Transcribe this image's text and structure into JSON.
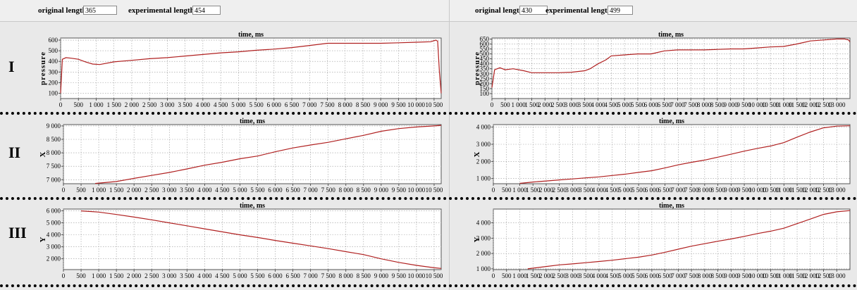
{
  "header_left": {
    "original_label": "original length",
    "original_value": "365",
    "experimental_label": "experimental length",
    "experimental_value": "454"
  },
  "header_right": {
    "original_label": "original length",
    "original_value": "430",
    "experimental_label": "experimental length",
    "experimental_value": "499"
  },
  "row_labels": [
    "I",
    "II",
    "III"
  ],
  "colors": {
    "line": "#b02020",
    "grid": "#9a9a9a",
    "plot_bg": "#ffffff",
    "panel_bg": "#e9e9e9"
  },
  "chart_data": [
    {
      "type": "line",
      "title": "time, ms",
      "ylabel": "pressure",
      "xlabel": "",
      "xlim": [
        0,
        10700
      ],
      "ylim": [
        50,
        620
      ],
      "xticks": [
        0,
        500,
        1000,
        1500,
        2000,
        2500,
        3000,
        3500,
        4000,
        4500,
        5000,
        5500,
        6000,
        6500,
        7000,
        7500,
        8000,
        8500,
        9000,
        9500,
        10000,
        10500
      ],
      "xtick_labels": [
        "0",
        "500",
        "1 000",
        "1 500",
        "2 000",
        "2 500",
        "3 000",
        "3 500",
        "4 000",
        "4 500",
        "5 000",
        "5 500",
        "6 000",
        "6 500",
        "7 000",
        "7 500",
        "8 000",
        "8 500",
        "9 000",
        "9 500",
        "10 000",
        "10 500"
      ],
      "yticks": [
        100,
        200,
        300,
        400,
        500,
        600
      ],
      "ytick_labels": [
        "100",
        "200",
        "300",
        "400",
        "500",
        "600"
      ],
      "grid": true,
      "series": [
        {
          "x": [
            0,
            50,
            150,
            300,
            500,
            700,
            900,
            1100,
            1500,
            2000,
            2500,
            3000,
            3500,
            4000,
            4500,
            5000,
            5500,
            6000,
            6500,
            7000,
            7500,
            8000,
            8500,
            9000,
            9500,
            10000,
            10400,
            10550,
            10600,
            10650,
            10700
          ],
          "y": [
            100,
            420,
            435,
            430,
            420,
            395,
            375,
            370,
            395,
            410,
            425,
            435,
            450,
            465,
            480,
            490,
            505,
            515,
            530,
            550,
            570,
            570,
            570,
            570,
            575,
            580,
            585,
            600,
            590,
            300,
            100
          ]
        }
      ]
    },
    {
      "type": "line",
      "title": "time, ms",
      "ylabel": "pressure",
      "xlabel": "",
      "xlim": [
        0,
        13500
      ],
      "ylim": [
        50,
        660
      ],
      "xticks": [
        0,
        500,
        1000,
        1500,
        2000,
        2500,
        3000,
        3500,
        4000,
        4500,
        5000,
        5500,
        6000,
        6500,
        7000,
        7500,
        8000,
        8500,
        9000,
        9500,
        10000,
        10500,
        11000,
        11500,
        12000,
        12500,
        13000
      ],
      "xtick_labels": [
        "0",
        "500",
        "1 000",
        "1 500",
        "2 000",
        "2 500",
        "3 000",
        "3 500",
        "4 000",
        "4 500",
        "5 000",
        "5 500",
        "6 000",
        "6 500",
        "7 000",
        "7 500",
        "8 000",
        "8 500",
        "9 000",
        "9 500",
        "10 000",
        "10 500",
        "11 000",
        "11 500",
        "12 000",
        "12 500",
        "13 000"
      ],
      "yticks": [
        100,
        150,
        200,
        250,
        300,
        350,
        400,
        450,
        500,
        550,
        600,
        650
      ],
      "ytick_labels": [
        "100",
        "150",
        "200",
        "250",
        "300",
        "350",
        "400",
        "450",
        "500",
        "550",
        "600",
        "650"
      ],
      "grid": true,
      "series": [
        {
          "x": [
            0,
            100,
            300,
            500,
            800,
            1200,
            1500,
            2000,
            2500,
            3000,
            3500,
            3700,
            4000,
            4300,
            4500,
            5000,
            5500,
            6000,
            6500,
            7000,
            7500,
            8000,
            8500,
            9000,
            9500,
            10000,
            10500,
            11000,
            11500,
            12000,
            12500,
            13000,
            13300,
            13450,
            13500
          ],
          "y": [
            160,
            340,
            360,
            340,
            350,
            330,
            310,
            310,
            310,
            315,
            330,
            350,
            400,
            440,
            480,
            490,
            500,
            500,
            530,
            540,
            540,
            540,
            545,
            550,
            550,
            560,
            570,
            575,
            600,
            630,
            640,
            650,
            650,
            640,
            620
          ]
        }
      ]
    },
    {
      "type": "line",
      "title": "time, ms",
      "ylabel": "X",
      "xlabel": "",
      "xlim": [
        0,
        10700
      ],
      "ylim": [
        6850,
        9050
      ],
      "xticks": [
        0,
        500,
        1000,
        1500,
        2000,
        2500,
        3000,
        3500,
        4000,
        4500,
        5000,
        5500,
        6000,
        6500,
        7000,
        7500,
        8000,
        8500,
        9000,
        9500,
        10000,
        10500
      ],
      "xtick_labels": [
        "0",
        "500",
        "1 000",
        "1 500",
        "2 000",
        "2 500",
        "3 000",
        "3 500",
        "4 000",
        "4 500",
        "5 000",
        "5 500",
        "6 000",
        "6 500",
        "7 000",
        "7 500",
        "8 000",
        "8 500",
        "9 000",
        "9 500",
        "10 000",
        "10 500"
      ],
      "yticks": [
        7000,
        7500,
        8000,
        8500,
        9000
      ],
      "ytick_labels": [
        "7 000",
        "7 500",
        "8 000",
        "8 500",
        "9 000"
      ],
      "grid": true,
      "series": [
        {
          "x": [
            900,
            1500,
            2000,
            2500,
            3000,
            3500,
            4000,
            4500,
            5000,
            5500,
            6000,
            6500,
            7000,
            7500,
            8000,
            8500,
            9000,
            9500,
            10000,
            10500,
            10700
          ],
          "y": [
            6860,
            6930,
            7050,
            7160,
            7270,
            7400,
            7540,
            7650,
            7780,
            7880,
            8040,
            8180,
            8290,
            8390,
            8520,
            8650,
            8800,
            8900,
            8960,
            9000,
            9020
          ]
        }
      ]
    },
    {
      "type": "line",
      "title": "time, ms",
      "ylabel": "X",
      "xlabel": "",
      "xlim": [
        0,
        13500
      ],
      "ylim": [
        700,
        4150
      ],
      "xticks": [
        0,
        500,
        1000,
        1500,
        2000,
        2500,
        3000,
        3500,
        4000,
        4500,
        5000,
        5500,
        6000,
        6500,
        7000,
        7500,
        8000,
        8500,
        9000,
        9500,
        10000,
        10500,
        11000,
        11500,
        12000,
        12500,
        13000
      ],
      "xtick_labels": [
        "0",
        "500",
        "1 000",
        "1 500",
        "2 000",
        "2 500",
        "3 000",
        "3 500",
        "4 000",
        "4 500",
        "5 000",
        "5 500",
        "6 000",
        "6 500",
        "7 000",
        "7 500",
        "8 000",
        "8 500",
        "9 000",
        "9 500",
        "10 000",
        "10 500",
        "11 000",
        "11 500",
        "12 000",
        "12 500",
        "13 000"
      ],
      "yticks": [
        1000,
        2000,
        3000,
        4000
      ],
      "ytick_labels": [
        "1 000",
        "2 000",
        "3 000",
        "4 000"
      ],
      "grid": true,
      "series": [
        {
          "x": [
            1000,
            1500,
            2000,
            2500,
            3000,
            3500,
            4000,
            4500,
            5000,
            5500,
            6000,
            6500,
            7000,
            7500,
            8000,
            8500,
            9000,
            9500,
            10000,
            10500,
            11000,
            11500,
            12000,
            12500,
            13000,
            13500
          ],
          "y": [
            720,
            800,
            860,
            920,
            980,
            1040,
            1100,
            1180,
            1260,
            1360,
            1460,
            1620,
            1800,
            1950,
            2080,
            2250,
            2420,
            2600,
            2760,
            2900,
            3100,
            3420,
            3720,
            3960,
            4060,
            4080
          ]
        }
      ]
    },
    {
      "type": "line",
      "title": "time, ms",
      "ylabel": "Y",
      "xlabel": "",
      "xlim": [
        0,
        10700
      ],
      "ylim": [
        1100,
        6150
      ],
      "xticks": [
        0,
        500,
        1000,
        1500,
        2000,
        2500,
        3000,
        3500,
        4000,
        4500,
        5000,
        5500,
        6000,
        6500,
        7000,
        7500,
        8000,
        8500,
        9000,
        9500,
        10000,
        10500
      ],
      "xtick_labels": [
        "0",
        "500",
        "1 000",
        "1 500",
        "2 000",
        "2 500",
        "3 000",
        "3 500",
        "4 000",
        "4 500",
        "5 000",
        "5 500",
        "6 000",
        "6 500",
        "7 000",
        "7 500",
        "8 000",
        "8 500",
        "9 000",
        "9 500",
        "10 000",
        "10 500"
      ],
      "yticks": [
        2000,
        3000,
        4000,
        5000,
        6000
      ],
      "ytick_labels": [
        "2 000",
        "3 000",
        "4 000",
        "5 000",
        "6 000"
      ],
      "grid": true,
      "series": [
        {
          "x": [
            500,
            1000,
            1500,
            2000,
            2500,
            3000,
            3500,
            4000,
            4500,
            5000,
            5500,
            6000,
            6500,
            7000,
            7500,
            8000,
            8500,
            9000,
            9500,
            10000,
            10500,
            10700
          ],
          "y": [
            6000,
            5900,
            5700,
            5480,
            5250,
            5000,
            4750,
            4500,
            4250,
            4000,
            3780,
            3530,
            3300,
            3080,
            2850,
            2600,
            2350,
            2000,
            1700,
            1450,
            1250,
            1200
          ]
        }
      ]
    },
    {
      "type": "line",
      "title": "time, ms",
      "ylabel": "Y",
      "xlabel": "",
      "xlim": [
        0,
        13500
      ],
      "ylim": [
        950,
        4900
      ],
      "xticks": [
        0,
        500,
        1000,
        1500,
        2000,
        2500,
        3000,
        3500,
        4000,
        4500,
        5000,
        5500,
        6000,
        6500,
        7000,
        7500,
        8000,
        8500,
        9000,
        9500,
        10000,
        10500,
        11000,
        11500,
        12000,
        12500,
        13000
      ],
      "xtick_labels": [
        "0",
        "500",
        "1 000",
        "1 500",
        "2 000",
        "2 500",
        "3 000",
        "3 500",
        "4 000",
        "4 500",
        "5 000",
        "5 500",
        "6 000",
        "6 500",
        "7 000",
        "7 500",
        "8 000",
        "8 500",
        "9 000",
        "9 500",
        "10 000",
        "10 500",
        "11 000",
        "11 500",
        "12 000",
        "12 500",
        "13 000"
      ],
      "yticks": [
        1000,
        2000,
        3000,
        4000
      ],
      "ytick_labels": [
        "1 000",
        "2 000",
        "3 000",
        "4 000"
      ],
      "grid": true,
      "series": [
        {
          "x": [
            1300,
            2000,
            2500,
            3000,
            3500,
            4000,
            4500,
            5000,
            5500,
            6000,
            6500,
            7000,
            7500,
            8000,
            8500,
            9000,
            9500,
            10000,
            10500,
            11000,
            11500,
            12000,
            12500,
            13000,
            13500
          ],
          "y": [
            1000,
            1150,
            1260,
            1320,
            1400,
            1480,
            1560,
            1660,
            1760,
            1900,
            2080,
            2280,
            2480,
            2640,
            2800,
            2950,
            3120,
            3300,
            3460,
            3650,
            3950,
            4250,
            4550,
            4720,
            4800
          ]
        }
      ]
    }
  ]
}
